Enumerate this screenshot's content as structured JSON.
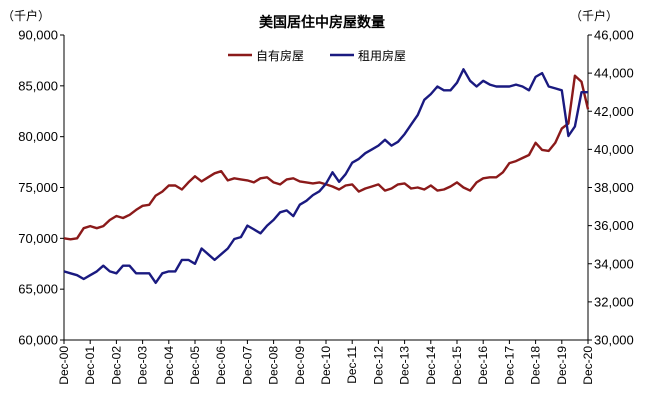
{
  "chart_data": {
    "type": "line",
    "title": "美国居住中房屋数量",
    "left_unit": "（千户）",
    "right_unit": "（千户）",
    "legend_placement": "top-center",
    "grid": false,
    "left_axis": {
      "min": 60000,
      "max": 90000,
      "ticks": [
        "60,000",
        "65,000",
        "70,000",
        "75,000",
        "80,000",
        "85,000",
        "90,000"
      ],
      "tick_values": [
        60000,
        65000,
        70000,
        75000,
        80000,
        85000,
        90000
      ]
    },
    "right_axis": {
      "min": 30000,
      "max": 46000,
      "ticks": [
        "30,000",
        "32,000",
        "34,000",
        "36,000",
        "38,000",
        "40,000",
        "42,000",
        "44,000",
        "46,000"
      ],
      "tick_values": [
        30000,
        32000,
        34000,
        36000,
        38000,
        40000,
        42000,
        44000,
        46000
      ]
    },
    "x_ticks": [
      "Dec-00",
      "Dec-01",
      "Dec-02",
      "Dec-03",
      "Dec-04",
      "Dec-05",
      "Dec-06",
      "Dec-07",
      "Dec-08",
      "Dec-09",
      "Dec-10",
      "Dec-11",
      "Dec-12",
      "Dec-13",
      "Dec-14",
      "Dec-15",
      "Dec-16",
      "Dec-17",
      "Dec-18",
      "Dec-19",
      "Dec-20"
    ],
    "series": [
      {
        "name": "自有房屋",
        "axis": "left",
        "color": "#8B1A1A",
        "x": [
          2000.92,
          2001.17,
          2001.42,
          2001.67,
          2001.92,
          2002.17,
          2002.42,
          2002.67,
          2002.92,
          2003.17,
          2003.42,
          2003.67,
          2003.92,
          2004.17,
          2004.42,
          2004.67,
          2004.92,
          2005.17,
          2005.42,
          2005.67,
          2005.92,
          2006.17,
          2006.42,
          2006.67,
          2006.92,
          2007.17,
          2007.42,
          2007.67,
          2007.92,
          2008.17,
          2008.42,
          2008.67,
          2008.92,
          2009.17,
          2009.42,
          2009.67,
          2009.92,
          2010.17,
          2010.42,
          2010.67,
          2010.92,
          2011.17,
          2011.42,
          2011.67,
          2011.92,
          2012.17,
          2012.42,
          2012.67,
          2012.92,
          2013.17,
          2013.42,
          2013.67,
          2013.92,
          2014.17,
          2014.42,
          2014.67,
          2014.92,
          2015.17,
          2015.42,
          2015.67,
          2015.92,
          2016.17,
          2016.42,
          2016.67,
          2016.92,
          2017.17,
          2017.42,
          2017.67,
          2017.92,
          2018.17,
          2018.42,
          2018.67,
          2018.92,
          2019.17,
          2019.42,
          2019.67,
          2019.92,
          2020.17,
          2020.42,
          2020.67,
          2020.92
        ],
        "values": [
          70000,
          69900,
          70000,
          71000,
          71200,
          71000,
          71200,
          71800,
          72200,
          72000,
          72300,
          72800,
          73200,
          73300,
          74200,
          74600,
          75200,
          75200,
          74800,
          75500,
          76100,
          75600,
          76000,
          76400,
          76600,
          75700,
          75900,
          75800,
          75700,
          75500,
          75900,
          76000,
          75500,
          75300,
          75800,
          75900,
          75600,
          75500,
          75400,
          75500,
          75300,
          75100,
          74800,
          75200,
          75300,
          74600,
          74900,
          75100,
          75300,
          74700,
          74900,
          75300,
          75400,
          74900,
          75000,
          74800,
          75200,
          74700,
          74800,
          75100,
          75500,
          75000,
          74700,
          75500,
          75900,
          76000,
          76000,
          76500,
          77400,
          77600,
          77900,
          78200,
          79400,
          78700,
          78600,
          79400,
          80800,
          81300,
          86000,
          85400,
          82700
        ]
      },
      {
        "name": "租用房屋",
        "axis": "right",
        "color": "#1A1A80",
        "x": [
          2000.92,
          2001.17,
          2001.42,
          2001.67,
          2001.92,
          2002.17,
          2002.42,
          2002.67,
          2002.92,
          2003.17,
          2003.42,
          2003.67,
          2003.92,
          2004.17,
          2004.42,
          2004.67,
          2004.92,
          2005.17,
          2005.42,
          2005.67,
          2005.92,
          2006.17,
          2006.42,
          2006.67,
          2006.92,
          2007.17,
          2007.42,
          2007.67,
          2007.92,
          2008.17,
          2008.42,
          2008.67,
          2008.92,
          2009.17,
          2009.42,
          2009.67,
          2009.92,
          2010.17,
          2010.42,
          2010.67,
          2010.92,
          2011.17,
          2011.42,
          2011.67,
          2011.92,
          2012.17,
          2012.42,
          2012.67,
          2012.92,
          2013.17,
          2013.42,
          2013.67,
          2013.92,
          2014.17,
          2014.42,
          2014.67,
          2014.92,
          2015.17,
          2015.42,
          2015.67,
          2015.92,
          2016.17,
          2016.42,
          2016.67,
          2016.92,
          2017.17,
          2017.42,
          2017.67,
          2017.92,
          2018.17,
          2018.42,
          2018.67,
          2018.92,
          2019.17,
          2019.42,
          2019.67,
          2019.92,
          2020.17,
          2020.42,
          2020.67,
          2020.92
        ],
        "values": [
          33600,
          33500,
          33400,
          33200,
          33400,
          33600,
          33900,
          33600,
          33500,
          33900,
          33900,
          33500,
          33500,
          33500,
          33000,
          33500,
          33600,
          33600,
          34200,
          34200,
          34000,
          34800,
          34500,
          34200,
          34500,
          34800,
          35300,
          35400,
          36000,
          35800,
          35600,
          36000,
          36300,
          36700,
          36800,
          36500,
          37100,
          37300,
          37600,
          37800,
          38200,
          38800,
          38300,
          38700,
          39300,
          39500,
          39800,
          40000,
          40200,
          40500,
          40200,
          40400,
          40800,
          41300,
          41800,
          42600,
          42900,
          43300,
          43100,
          43100,
          43500,
          44200,
          43600,
          43300,
          43600,
          43400,
          43300,
          43300,
          43300,
          43400,
          43300,
          43100,
          43800,
          44000,
          43300,
          43200,
          43100,
          40700,
          41200,
          43000,
          43000
        ]
      }
    ]
  }
}
